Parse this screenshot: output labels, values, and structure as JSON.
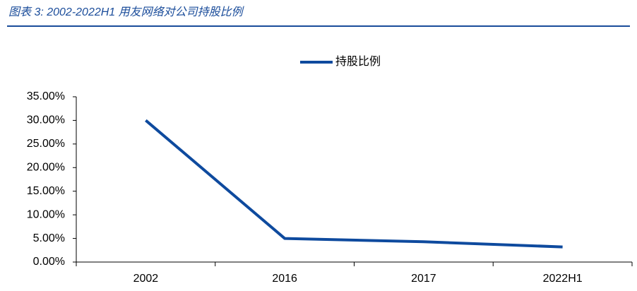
{
  "chart_data": {
    "type": "line",
    "title": "图表 3: 2002-2022H1 用友网络对公司持股比例",
    "categories": [
      "2002",
      "2016",
      "2017",
      "2022H1"
    ],
    "series": [
      {
        "name": "持股比例",
        "color": "#0e4a9e",
        "values": [
          30,
          5,
          4.3,
          3.2
        ]
      }
    ],
    "ylim": [
      0,
      35
    ],
    "yticks": [
      {
        "value": 0,
        "label": "0.00%"
      },
      {
        "value": 5,
        "label": "5.00%"
      },
      {
        "value": 10,
        "label": "10.00%"
      },
      {
        "value": 15,
        "label": "15.00%"
      },
      {
        "value": 20,
        "label": "20.00%"
      },
      {
        "value": 25,
        "label": "25.00%"
      },
      {
        "value": 30,
        "label": "30.00%"
      },
      {
        "value": 35,
        "label": "35.00%"
      }
    ],
    "grid": false,
    "legend": "top"
  }
}
